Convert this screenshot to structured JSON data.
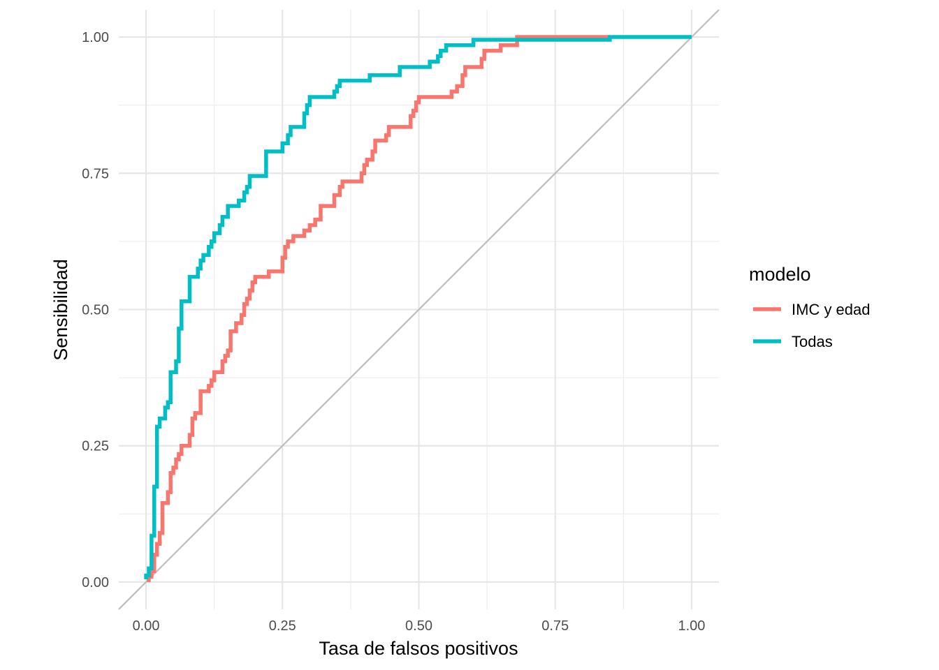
{
  "chart_data": {
    "type": "line",
    "xlabel": "Tasa de falsos positivos",
    "ylabel": "Sensibilidad",
    "xlim": [
      -0.05,
      1.05
    ],
    "ylim": [
      -0.05,
      1.05
    ],
    "x_ticks": [
      0,
      0.25,
      0.5,
      0.75,
      1
    ],
    "y_ticks": [
      0,
      0.25,
      0.5,
      0.75,
      1
    ],
    "x_tick_labels": [
      "0.00",
      "0.25",
      "0.50",
      "0.75",
      "1.00"
    ],
    "y_tick_labels": [
      "0.00",
      "0.25",
      "0.50",
      "0.75",
      "1.00"
    ],
    "grid": true,
    "diagonal_reference": true,
    "legend": {
      "title": "modelo",
      "position": "right"
    },
    "series": [
      {
        "name": "IMC y edad",
        "color": "#F8766D",
        "points": [
          [
            0.005,
            0.0
          ],
          [
            0.005,
            0.01
          ],
          [
            0.01,
            0.01
          ],
          [
            0.01,
            0.02
          ],
          [
            0.015,
            0.02
          ],
          [
            0.015,
            0.05
          ],
          [
            0.02,
            0.05
          ],
          [
            0.02,
            0.07
          ],
          [
            0.025,
            0.07
          ],
          [
            0.025,
            0.09
          ],
          [
            0.03,
            0.09
          ],
          [
            0.03,
            0.145
          ],
          [
            0.04,
            0.145
          ],
          [
            0.04,
            0.165
          ],
          [
            0.045,
            0.165
          ],
          [
            0.045,
            0.2
          ],
          [
            0.05,
            0.2
          ],
          [
            0.05,
            0.21
          ],
          [
            0.055,
            0.21
          ],
          [
            0.055,
            0.225
          ],
          [
            0.06,
            0.225
          ],
          [
            0.06,
            0.235
          ],
          [
            0.065,
            0.235
          ],
          [
            0.065,
            0.25
          ],
          [
            0.08,
            0.25
          ],
          [
            0.08,
            0.27
          ],
          [
            0.085,
            0.27
          ],
          [
            0.085,
            0.3
          ],
          [
            0.09,
            0.3
          ],
          [
            0.09,
            0.31
          ],
          [
            0.1,
            0.31
          ],
          [
            0.1,
            0.35
          ],
          [
            0.115,
            0.35
          ],
          [
            0.115,
            0.36
          ],
          [
            0.12,
            0.36
          ],
          [
            0.12,
            0.37
          ],
          [
            0.125,
            0.37
          ],
          [
            0.125,
            0.385
          ],
          [
            0.14,
            0.385
          ],
          [
            0.14,
            0.405
          ],
          [
            0.145,
            0.405
          ],
          [
            0.145,
            0.415
          ],
          [
            0.15,
            0.415
          ],
          [
            0.15,
            0.425
          ],
          [
            0.155,
            0.425
          ],
          [
            0.155,
            0.46
          ],
          [
            0.165,
            0.46
          ],
          [
            0.165,
            0.475
          ],
          [
            0.175,
            0.475
          ],
          [
            0.175,
            0.49
          ],
          [
            0.18,
            0.49
          ],
          [
            0.18,
            0.51
          ],
          [
            0.185,
            0.51
          ],
          [
            0.185,
            0.52
          ],
          [
            0.19,
            0.52
          ],
          [
            0.19,
            0.535
          ],
          [
            0.195,
            0.535
          ],
          [
            0.195,
            0.55
          ],
          [
            0.2,
            0.55
          ],
          [
            0.2,
            0.56
          ],
          [
            0.225,
            0.56
          ],
          [
            0.225,
            0.57
          ],
          [
            0.25,
            0.57
          ],
          [
            0.25,
            0.595
          ],
          [
            0.255,
            0.595
          ],
          [
            0.255,
            0.615
          ],
          [
            0.26,
            0.615
          ],
          [
            0.26,
            0.625
          ],
          [
            0.27,
            0.625
          ],
          [
            0.27,
            0.635
          ],
          [
            0.29,
            0.635
          ],
          [
            0.29,
            0.645
          ],
          [
            0.3,
            0.645
          ],
          [
            0.3,
            0.655
          ],
          [
            0.31,
            0.655
          ],
          [
            0.31,
            0.665
          ],
          [
            0.32,
            0.665
          ],
          [
            0.32,
            0.69
          ],
          [
            0.345,
            0.69
          ],
          [
            0.345,
            0.71
          ],
          [
            0.355,
            0.71
          ],
          [
            0.355,
            0.725
          ],
          [
            0.36,
            0.725
          ],
          [
            0.36,
            0.735
          ],
          [
            0.395,
            0.735
          ],
          [
            0.395,
            0.75
          ],
          [
            0.4,
            0.75
          ],
          [
            0.4,
            0.765
          ],
          [
            0.405,
            0.765
          ],
          [
            0.405,
            0.775
          ],
          [
            0.415,
            0.775
          ],
          [
            0.415,
            0.79
          ],
          [
            0.42,
            0.79
          ],
          [
            0.42,
            0.81
          ],
          [
            0.44,
            0.81
          ],
          [
            0.44,
            0.82
          ],
          [
            0.445,
            0.82
          ],
          [
            0.445,
            0.835
          ],
          [
            0.485,
            0.835
          ],
          [
            0.485,
            0.855
          ],
          [
            0.49,
            0.855
          ],
          [
            0.49,
            0.865
          ],
          [
            0.495,
            0.865
          ],
          [
            0.495,
            0.88
          ],
          [
            0.5,
            0.88
          ],
          [
            0.5,
            0.89
          ],
          [
            0.56,
            0.89
          ],
          [
            0.56,
            0.9
          ],
          [
            0.57,
            0.9
          ],
          [
            0.57,
            0.91
          ],
          [
            0.58,
            0.91
          ],
          [
            0.58,
            0.93
          ],
          [
            0.585,
            0.93
          ],
          [
            0.585,
            0.945
          ],
          [
            0.615,
            0.945
          ],
          [
            0.615,
            0.96
          ],
          [
            0.62,
            0.96
          ],
          [
            0.62,
            0.975
          ],
          [
            0.65,
            0.975
          ],
          [
            0.65,
            0.985
          ],
          [
            0.68,
            0.985
          ],
          [
            0.68,
            1.0
          ],
          [
            0.85,
            1.0
          ]
        ]
      },
      {
        "name": "Todas",
        "color": "#00BFC4",
        "points": [
          [
            0.0,
            0.005
          ],
          [
            0.0,
            0.012
          ],
          [
            0.005,
            0.012
          ],
          [
            0.005,
            0.025
          ],
          [
            0.01,
            0.025
          ],
          [
            0.01,
            0.085
          ],
          [
            0.015,
            0.085
          ],
          [
            0.015,
            0.175
          ],
          [
            0.02,
            0.175
          ],
          [
            0.02,
            0.285
          ],
          [
            0.025,
            0.285
          ],
          [
            0.025,
            0.3
          ],
          [
            0.035,
            0.3
          ],
          [
            0.035,
            0.32
          ],
          [
            0.04,
            0.32
          ],
          [
            0.04,
            0.33
          ],
          [
            0.045,
            0.33
          ],
          [
            0.045,
            0.385
          ],
          [
            0.055,
            0.385
          ],
          [
            0.055,
            0.405
          ],
          [
            0.06,
            0.405
          ],
          [
            0.06,
            0.465
          ],
          [
            0.065,
            0.465
          ],
          [
            0.065,
            0.515
          ],
          [
            0.08,
            0.515
          ],
          [
            0.08,
            0.56
          ],
          [
            0.095,
            0.56
          ],
          [
            0.095,
            0.575
          ],
          [
            0.1,
            0.575
          ],
          [
            0.1,
            0.59
          ],
          [
            0.105,
            0.59
          ],
          [
            0.105,
            0.6
          ],
          [
            0.115,
            0.6
          ],
          [
            0.115,
            0.615
          ],
          [
            0.12,
            0.615
          ],
          [
            0.12,
            0.625
          ],
          [
            0.125,
            0.625
          ],
          [
            0.125,
            0.64
          ],
          [
            0.135,
            0.64
          ],
          [
            0.135,
            0.655
          ],
          [
            0.14,
            0.655
          ],
          [
            0.14,
            0.67
          ],
          [
            0.15,
            0.67
          ],
          [
            0.15,
            0.69
          ],
          [
            0.17,
            0.69
          ],
          [
            0.17,
            0.7
          ],
          [
            0.18,
            0.7
          ],
          [
            0.18,
            0.715
          ],
          [
            0.185,
            0.715
          ],
          [
            0.185,
            0.725
          ],
          [
            0.19,
            0.725
          ],
          [
            0.19,
            0.745
          ],
          [
            0.22,
            0.745
          ],
          [
            0.22,
            0.79
          ],
          [
            0.25,
            0.79
          ],
          [
            0.25,
            0.805
          ],
          [
            0.26,
            0.805
          ],
          [
            0.26,
            0.82
          ],
          [
            0.265,
            0.82
          ],
          [
            0.265,
            0.835
          ],
          [
            0.29,
            0.835
          ],
          [
            0.29,
            0.86
          ],
          [
            0.295,
            0.86
          ],
          [
            0.295,
            0.875
          ],
          [
            0.3,
            0.875
          ],
          [
            0.3,
            0.89
          ],
          [
            0.345,
            0.89
          ],
          [
            0.345,
            0.9
          ],
          [
            0.35,
            0.9
          ],
          [
            0.35,
            0.91
          ],
          [
            0.355,
            0.91
          ],
          [
            0.355,
            0.92
          ],
          [
            0.41,
            0.92
          ],
          [
            0.41,
            0.93
          ],
          [
            0.465,
            0.93
          ],
          [
            0.465,
            0.945
          ],
          [
            0.52,
            0.945
          ],
          [
            0.52,
            0.955
          ],
          [
            0.535,
            0.955
          ],
          [
            0.535,
            0.965
          ],
          [
            0.54,
            0.965
          ],
          [
            0.54,
            0.975
          ],
          [
            0.55,
            0.975
          ],
          [
            0.55,
            0.985
          ],
          [
            0.6,
            0.985
          ],
          [
            0.6,
            0.995
          ],
          [
            0.85,
            0.995
          ],
          [
            0.85,
            1.0
          ],
          [
            1.0,
            1.0
          ]
        ]
      }
    ]
  }
}
